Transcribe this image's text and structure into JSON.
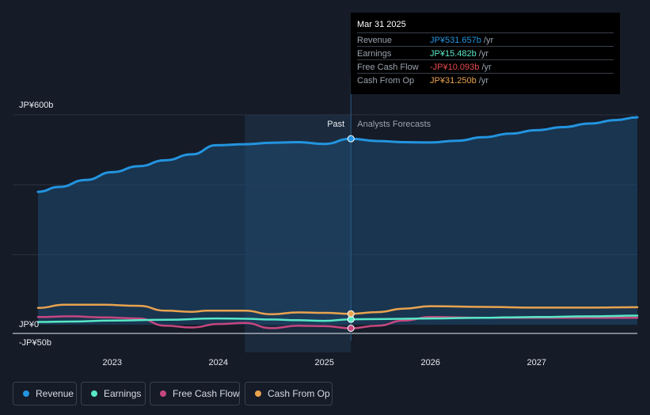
{
  "chart_data": {
    "type": "area-line",
    "y_unit": "JP¥",
    "ylim": [
      -50,
      600
    ],
    "y_ticks": [
      {
        "value": 600,
        "label": "JP¥600b"
      },
      {
        "value": 0,
        "label": "JP¥0"
      },
      {
        "value": -50,
        "label": "-JP¥50b"
      }
    ],
    "x_range": [
      2022.3,
      2027.95
    ],
    "x_ticks": [
      {
        "value": 2023,
        "label": "2023"
      },
      {
        "value": 2024,
        "label": "2024"
      },
      {
        "value": 2025,
        "label": "2025"
      },
      {
        "value": 2026,
        "label": "2026"
      },
      {
        "value": 2027,
        "label": "2027"
      }
    ],
    "divider": {
      "x": 2025.25,
      "past_label": "Past",
      "forecast_label": "Analysts Forecasts"
    },
    "highlight_band": [
      2024.25,
      2025.25
    ],
    "series": [
      {
        "name": "Revenue",
        "color": "#2394df",
        "points": [
          [
            2022.3,
            380
          ],
          [
            2022.5,
            394
          ],
          [
            2022.75,
            414
          ],
          [
            2023.0,
            436
          ],
          [
            2023.25,
            453
          ],
          [
            2023.5,
            470
          ],
          [
            2023.75,
            487
          ],
          [
            2023.98,
            513
          ],
          [
            2024.25,
            516
          ],
          [
            2024.5,
            520
          ],
          [
            2024.75,
            522
          ],
          [
            2025.0,
            517
          ],
          [
            2025.25,
            531.657
          ],
          [
            2025.5,
            525
          ],
          [
            2025.75,
            522
          ],
          [
            2026.0,
            521
          ],
          [
            2026.25,
            526
          ],
          [
            2026.5,
            536
          ],
          [
            2026.75,
            546
          ],
          [
            2027.0,
            556
          ],
          [
            2027.25,
            565
          ],
          [
            2027.5,
            575
          ],
          [
            2027.75,
            585
          ],
          [
            2027.95,
            593
          ]
        ]
      },
      {
        "name": "Earnings",
        "color": "#58e8c6",
        "points": [
          [
            2022.3,
            8
          ],
          [
            2022.6,
            9
          ],
          [
            2023.0,
            12
          ],
          [
            2023.5,
            14
          ],
          [
            2023.98,
            18
          ],
          [
            2024.25,
            17
          ],
          [
            2024.5,
            15
          ],
          [
            2024.75,
            13
          ],
          [
            2025.0,
            11
          ],
          [
            2025.25,
            15.482
          ],
          [
            2025.5,
            16
          ],
          [
            2026.0,
            18
          ],
          [
            2026.5,
            20
          ],
          [
            2026.75,
            21
          ],
          [
            2027.0,
            22
          ],
          [
            2027.5,
            24
          ],
          [
            2027.95,
            26
          ]
        ]
      },
      {
        "name": "Free Cash Flow",
        "color": "#c5477f",
        "points": [
          [
            2022.3,
            22
          ],
          [
            2022.6,
            24
          ],
          [
            2022.9,
            21
          ],
          [
            2023.25,
            18
          ],
          [
            2023.5,
            -3
          ],
          [
            2023.75,
            -8
          ],
          [
            2024.0,
            2
          ],
          [
            2024.25,
            5
          ],
          [
            2024.5,
            -10
          ],
          [
            2024.75,
            -3
          ],
          [
            2025.0,
            -4
          ],
          [
            2025.25,
            -10.093
          ],
          [
            2025.5,
            -3
          ],
          [
            2025.75,
            12
          ],
          [
            2026.0,
            22
          ],
          [
            2026.5,
            20
          ],
          [
            2027.0,
            20
          ],
          [
            2027.5,
            20
          ],
          [
            2027.95,
            20
          ]
        ]
      },
      {
        "name": "Cash From Op",
        "color": "#e9a34f",
        "points": [
          [
            2022.3,
            48
          ],
          [
            2022.55,
            57
          ],
          [
            2022.9,
            57
          ],
          [
            2023.25,
            54
          ],
          [
            2023.5,
            40
          ],
          [
            2023.75,
            37
          ],
          [
            2023.9,
            40
          ],
          [
            2024.25,
            40
          ],
          [
            2024.5,
            30
          ],
          [
            2024.75,
            35
          ],
          [
            2025.0,
            34
          ],
          [
            2025.25,
            31.25
          ],
          [
            2025.5,
            36
          ],
          [
            2025.75,
            46
          ],
          [
            2026.0,
            53
          ],
          [
            2026.5,
            51
          ],
          [
            2027.0,
            49
          ],
          [
            2027.5,
            49
          ],
          [
            2027.95,
            50
          ]
        ]
      }
    ],
    "tooltip": {
      "date": "Mar 31 2025",
      "rows": [
        {
          "label": "Revenue",
          "value": "JP¥531.657b",
          "unit": "/yr",
          "color": "#2394df"
        },
        {
          "label": "Earnings",
          "value": "JP¥15.482b",
          "unit": "/yr",
          "color": "#58e8c6"
        },
        {
          "label": "Free Cash Flow",
          "value": "-JP¥10.093b",
          "unit": "/yr",
          "color": "#e5484d"
        },
        {
          "label": "Cash From Op",
          "value": "JP¥31.250b",
          "unit": "/yr",
          "color": "#e9a34f"
        }
      ]
    }
  },
  "legend": [
    {
      "name": "Revenue",
      "color": "#2394df"
    },
    {
      "name": "Earnings",
      "color": "#58e8c6"
    },
    {
      "name": "Free Cash Flow",
      "color": "#c5477f"
    },
    {
      "name": "Cash From Op",
      "color": "#e9a34f"
    }
  ]
}
